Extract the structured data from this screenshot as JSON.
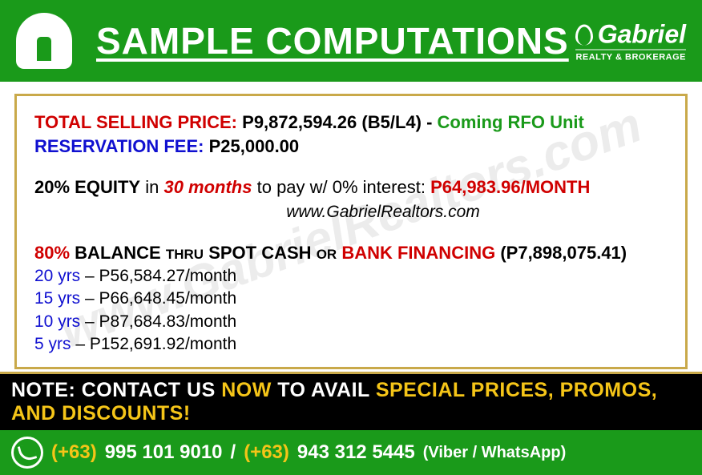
{
  "header": {
    "title": "SAMPLE COMPUTATIONS",
    "brand_name": "Gabriel",
    "brand_sub": "REALTY & BROKERAGE"
  },
  "colors": {
    "green": "#1a9a1a",
    "gold": "#c9a94a",
    "red": "#d00000",
    "blue": "#1010d0",
    "yellow": "#f5c518",
    "black": "#000000"
  },
  "pricing": {
    "tsp_label": "TOTAL SELLING PRICE:",
    "tsp_value": "P9,872,594.26",
    "tsp_unit": "(B5/L4)",
    "tsp_dash": "-",
    "tsp_status": "Coming RFO Unit",
    "rfee_label": "RESERVATION FEE:",
    "rfee_value": "P25,000.00"
  },
  "equity": {
    "pct": "20%",
    "label": "EQUITY",
    "in": "in",
    "months": "30 months",
    "mid": "to pay w/ 0% interest:",
    "amount": "P64,983.96/MONTH",
    "website": "www.GabrielRealtors.com"
  },
  "balance": {
    "pct": "80%",
    "b1": "BALANCE",
    "thru": "THRU",
    "b2": "SPOT CASH",
    "or": "OR",
    "b3": "BANK FINANCING",
    "amount": "(P7,898,075.41)",
    "terms": [
      {
        "yrs": "20 yrs",
        "rest": " – P56,584.27/month"
      },
      {
        "yrs": "15 yrs",
        "rest": " – P66,648.45/month"
      },
      {
        "yrs": "10 yrs",
        "rest": " – P87,684.83/month"
      },
      {
        "yrs": "5 yrs",
        "rest": " – P152,691.92/month"
      }
    ]
  },
  "footer": {
    "note_prefix": "NOTE: CONTACT US ",
    "note_now": "NOW",
    "note_mid": " TO AVAIL ",
    "note_highlight": "SPECIAL PRICES, PROMOS, AND DISCOUNTS!",
    "cc1": "(+63)",
    "phone1": "995 101 9010",
    "sep": "/",
    "cc2": "(+63)",
    "phone2": "943 312 5445",
    "viber": "(Viber / WhatsApp)"
  },
  "watermark": "www.GabrielRealtors.com"
}
